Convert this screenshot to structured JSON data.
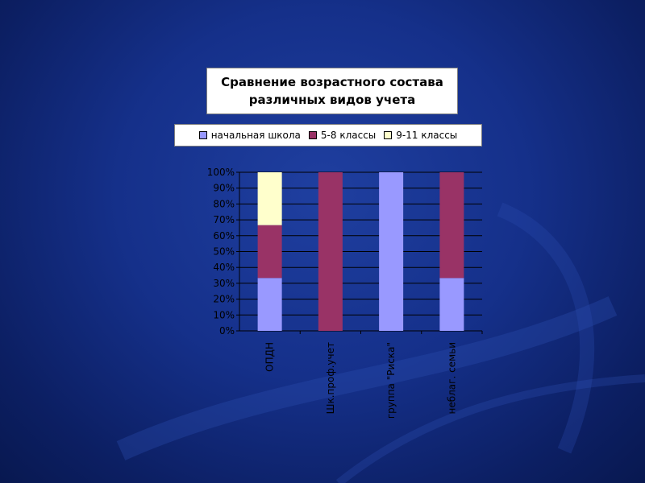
{
  "colors": {
    "background": "#15308a",
    "series": [
      "#9999ff",
      "#993366",
      "#ffffcc"
    ]
  },
  "chart_data": {
    "type": "bar",
    "stacked": true,
    "percent_stacked": true,
    "title": "Сравнение возрастного состава различных видов учета",
    "title_lines": [
      "Сравнение возрастного состава",
      "различных видов учета"
    ],
    "categories": [
      "ОПДН",
      "Шк.проф.учет",
      "группа \"Риска\"",
      "неблаг. семьи"
    ],
    "series": [
      {
        "name": "начальная школа",
        "values": [
          33.3,
          0,
          100,
          33.3
        ]
      },
      {
        "name": "5-8 классы",
        "values": [
          33.3,
          100,
          0,
          66.7
        ]
      },
      {
        "name": "9-11 классы",
        "values": [
          33.3,
          0,
          0,
          0
        ]
      }
    ],
    "y_ticks": [
      "0%",
      "10%",
      "20%",
      "30%",
      "40%",
      "50%",
      "60%",
      "70%",
      "80%",
      "90%",
      "100%"
    ],
    "ylim": [
      0,
      100
    ],
    "grid": true,
    "legend_position": "top"
  }
}
